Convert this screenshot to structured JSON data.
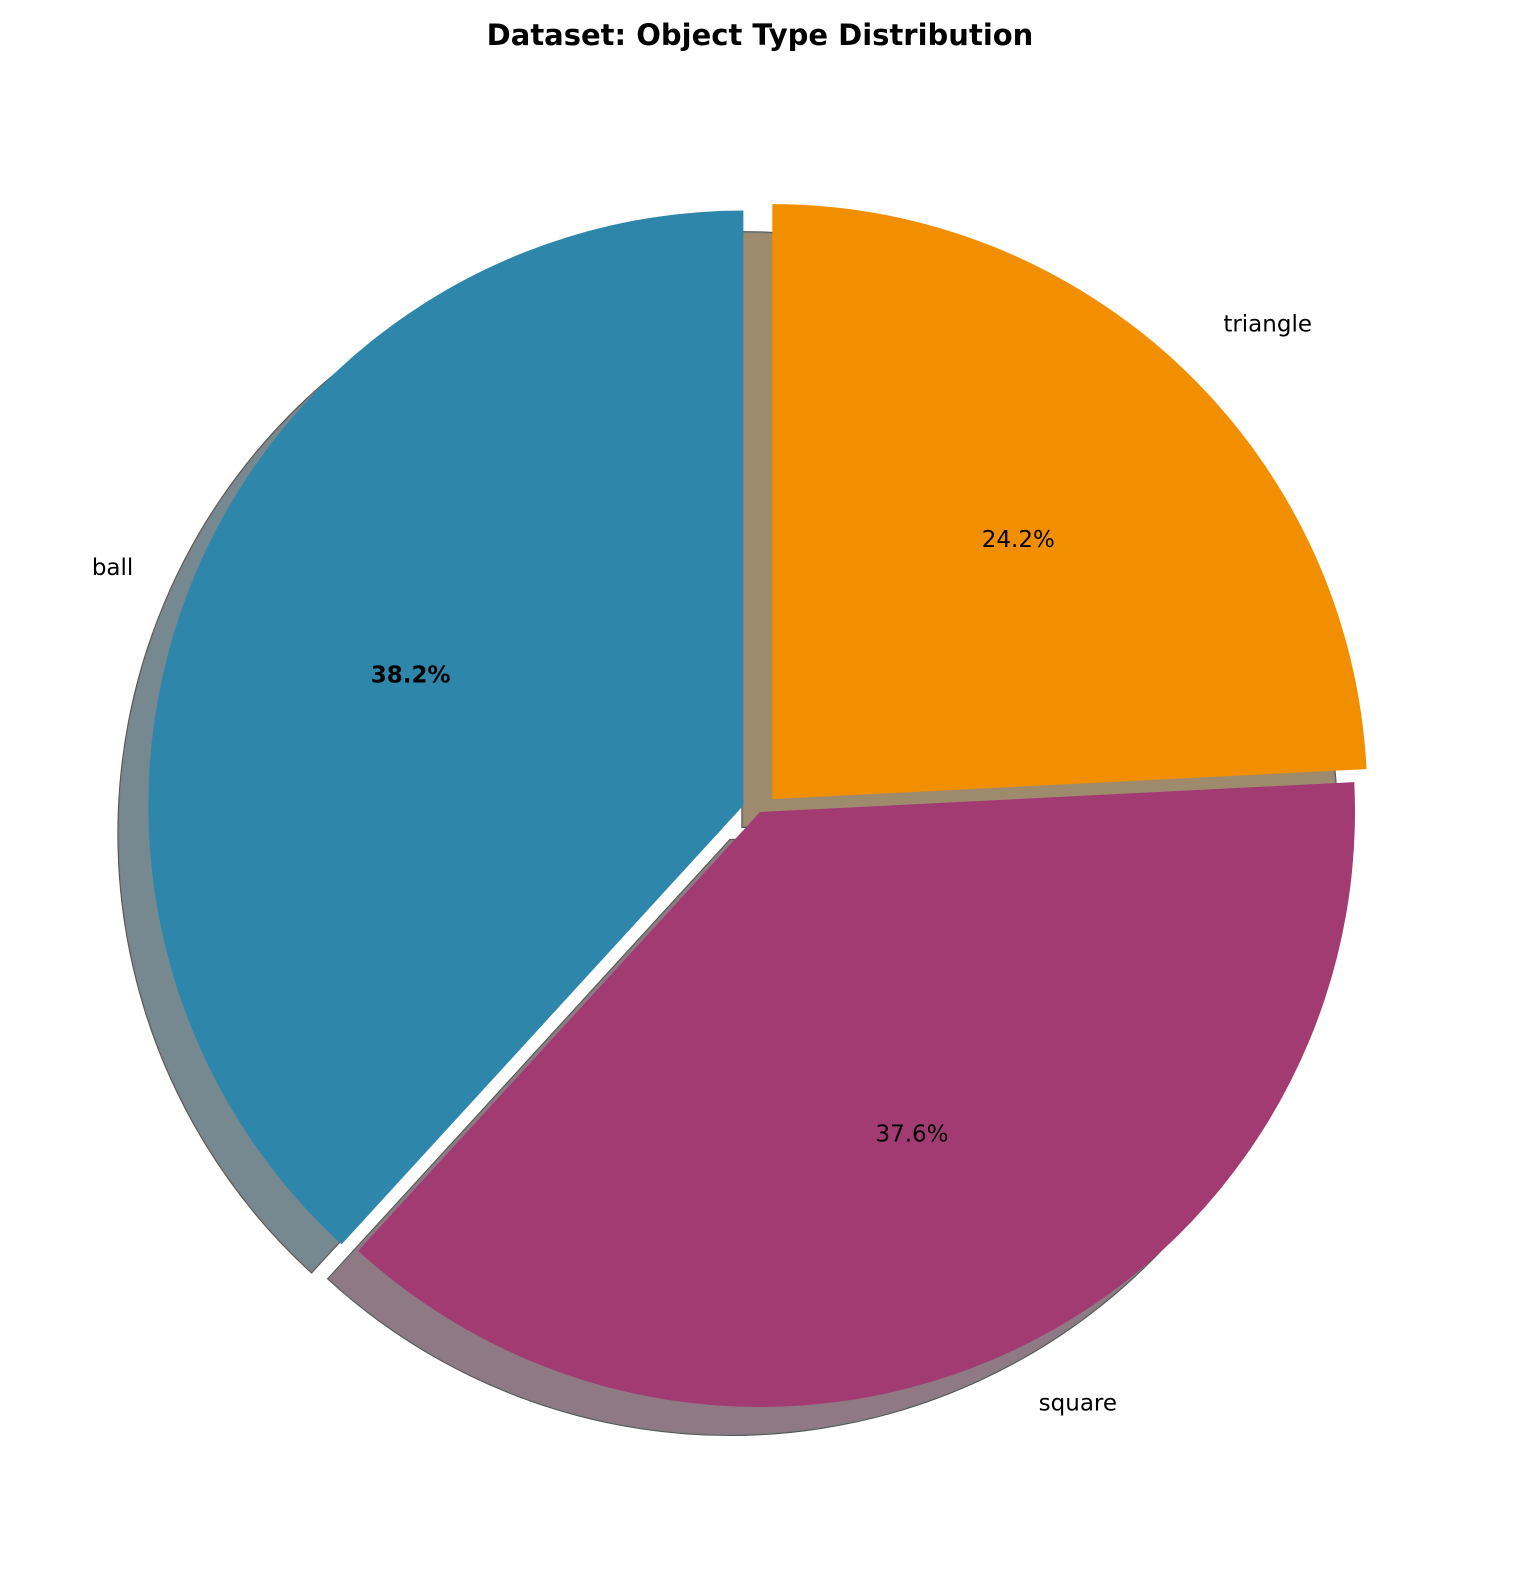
{
  "chart_data": {
    "type": "pie",
    "title": "Dataset: Object Type Distribution",
    "categories": [
      "ball",
      "square",
      "triangle"
    ],
    "values": [
      38.2,
      37.6,
      24.2
    ],
    "value_labels": [
      "38.2%",
      "37.6%",
      "24.2%"
    ],
    "colors": [
      "#2e86ab",
      "#a23b72",
      "#f18f01"
    ],
    "bold_labels": [
      true,
      false,
      false
    ],
    "explode": [
      0.03,
      0,
      0.03
    ],
    "shadow": true,
    "startangle": 90
  }
}
